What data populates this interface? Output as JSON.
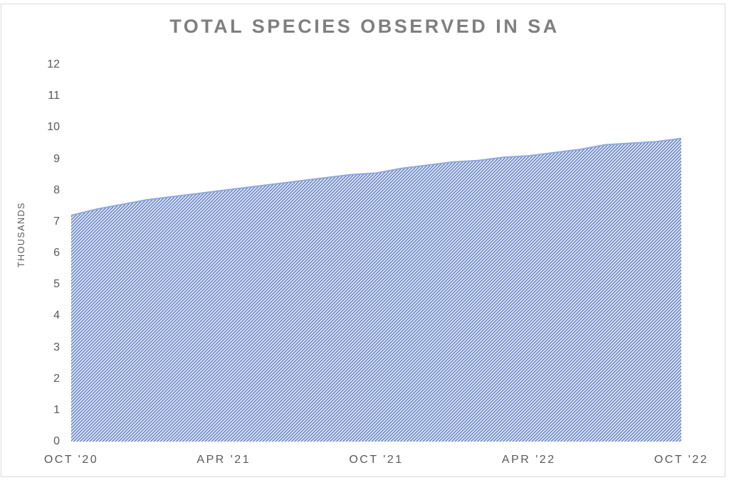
{
  "window": {
    "background_color": "#ffffff",
    "border_color": "#d9d9d9"
  },
  "chart_data": {
    "type": "area",
    "title": "TOTAL SPECIES OBSERVED IN SA",
    "ylabel": "THOUSANDS",
    "units": "thousands",
    "x_unit": "month",
    "x_range_months": 24,
    "ylim": [
      0,
      12
    ],
    "y_ticks": [
      0,
      1,
      2,
      3,
      4,
      5,
      6,
      7,
      8,
      9,
      10,
      11,
      12
    ],
    "x_ticks": [
      {
        "label": "OCT '20",
        "month": 0
      },
      {
        "label": "APR '21",
        "month": 6
      },
      {
        "label": "OCT '21",
        "month": 12
      },
      {
        "label": "APR '22",
        "month": 18
      },
      {
        "label": "OCT '22",
        "month": 24
      }
    ],
    "grid": false,
    "legend": false,
    "series": [
      {
        "name": "Total species observed",
        "months_from_oct_2020": [
          0,
          1,
          2,
          3,
          4,
          5,
          6,
          7,
          8,
          9,
          10,
          11,
          12,
          13,
          14,
          15,
          16,
          17,
          18,
          19,
          20,
          21,
          22,
          23,
          24
        ],
        "values_thousands": [
          7.2,
          7.4,
          7.55,
          7.7,
          7.8,
          7.9,
          8.0,
          8.1,
          8.2,
          8.3,
          8.4,
          8.5,
          8.55,
          8.7,
          8.8,
          8.9,
          8.95,
          9.05,
          9.1,
          9.2,
          9.3,
          9.45,
          9.5,
          9.55,
          9.65
        ]
      }
    ],
    "styles": {
      "fill_style": "diagonal-hatch",
      "hatch_background": "#dde6f5",
      "hatch_stripe_color": "#5a78c2",
      "edge_line_color": "#8fa8dc",
      "title_color": "#7f7f7f",
      "axis_label_color": "#595959"
    }
  }
}
